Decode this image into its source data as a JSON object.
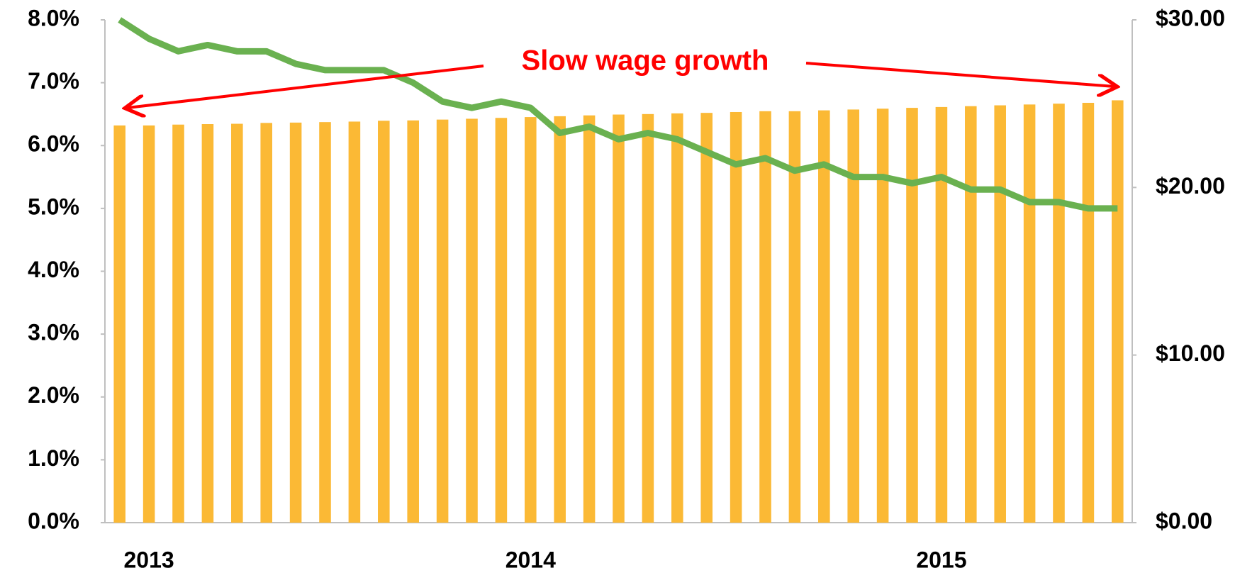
{
  "chart_data": {
    "type": "bar-line",
    "annotation": "Slow wage growth",
    "categories": [
      null,
      "2013",
      null,
      null,
      null,
      null,
      null,
      null,
      null,
      null,
      null,
      null,
      null,
      null,
      "2014",
      null,
      null,
      null,
      null,
      null,
      null,
      null,
      null,
      null,
      null,
      null,
      null,
      null,
      "2015",
      null,
      null,
      null,
      null,
      null,
      null
    ],
    "series": [
      {
        "type": "bar",
        "axis": "y2",
        "color": "#fbb935",
        "values": [
          23.7,
          23.7,
          23.75,
          23.78,
          23.8,
          23.85,
          23.87,
          23.9,
          23.93,
          23.98,
          24.0,
          24.05,
          24.1,
          24.15,
          24.2,
          24.25,
          24.3,
          24.35,
          24.38,
          24.42,
          24.45,
          24.5,
          24.55,
          24.55,
          24.6,
          24.65,
          24.7,
          24.75,
          24.8,
          24.85,
          24.9,
          24.95,
          25.0,
          25.05,
          25.2
        ]
      },
      {
        "type": "line",
        "axis": "y",
        "color": "#6ab150",
        "values": [
          8.0,
          7.7,
          7.5,
          7.6,
          7.5,
          7.5,
          7.3,
          7.2,
          7.2,
          7.2,
          7.0,
          6.7,
          6.6,
          6.7,
          6.6,
          6.2,
          6.3,
          6.1,
          6.2,
          6.1,
          5.9,
          5.7,
          5.8,
          5.6,
          5.7,
          5.5,
          5.5,
          5.4,
          5.5,
          5.3,
          5.3,
          5.1,
          5.1,
          5.0,
          5.0
        ]
      }
    ],
    "ylim": [
      0,
      8
    ],
    "yticks": [
      {
        "value": 0,
        "label": "0.0%"
      },
      {
        "value": 1,
        "label": "1.0%"
      },
      {
        "value": 2,
        "label": "2.0%"
      },
      {
        "value": 3,
        "label": "3.0%"
      },
      {
        "value": 4,
        "label": "4.0%"
      },
      {
        "value": 5,
        "label": "5.0%"
      },
      {
        "value": 6,
        "label": "6.0%"
      },
      {
        "value": 7,
        "label": "7.0%"
      },
      {
        "value": 8,
        "label": "8.0%"
      }
    ],
    "y2lim": [
      0,
      30
    ],
    "y2ticks": [
      {
        "value": 0,
        "label": "$0.00"
      },
      {
        "value": 10,
        "label": "$10.00"
      },
      {
        "value": 20,
        "label": "$20.00"
      },
      {
        "value": 30,
        "label": "$30.00"
      }
    ],
    "grid": false
  }
}
